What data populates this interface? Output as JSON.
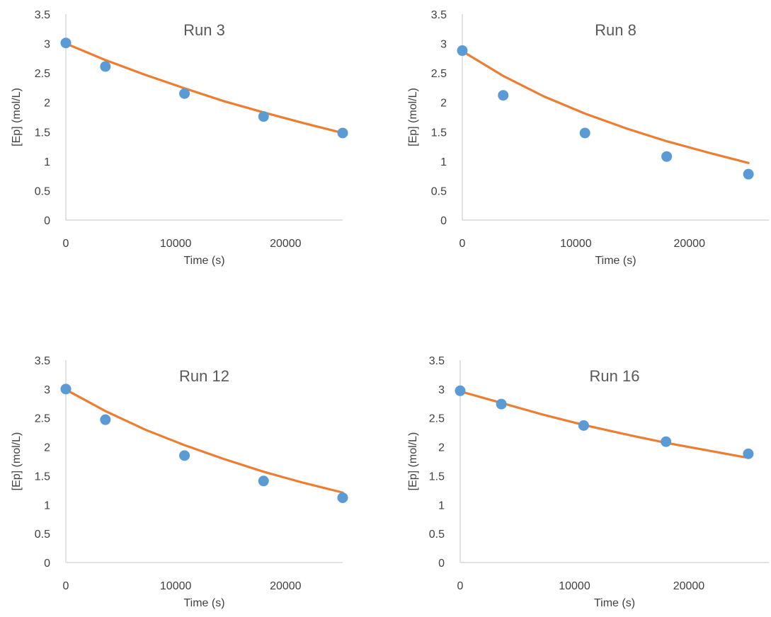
{
  "chart_data": [
    {
      "type": "scatter",
      "title": "Run 3",
      "xlabel": "Time (s)",
      "ylabel": "[Ep] (mol/L)",
      "xlim": [
        0,
        25200
      ],
      "ylim": [
        0,
        3.5
      ],
      "xticks": [
        "0",
        "10000",
        "20000"
      ],
      "yticks": [
        "0",
        "0.5",
        "1",
        "1.5",
        "2",
        "2.5",
        "3",
        "3.5"
      ],
      "grid": false,
      "series": [
        {
          "kind": "scatter",
          "color": "#5b9bd5",
          "x": [
            0,
            3600,
            10800,
            18000,
            25200
          ],
          "y": [
            3.01,
            2.61,
            2.15,
            1.76,
            1.48
          ]
        },
        {
          "kind": "line",
          "color": "#ed7d31",
          "x": [
            0,
            3600,
            7200,
            10800,
            14400,
            18000,
            21600,
            25200
          ],
          "y": [
            3.0,
            2.72,
            2.47,
            2.24,
            2.02,
            1.83,
            1.65,
            1.48
          ]
        }
      ]
    },
    {
      "type": "scatter",
      "title": "Run 8",
      "xlabel": "Time (s)",
      "ylabel": "[Ep] (mol/L)",
      "xlim": [
        0,
        27000
      ],
      "ylim": [
        0,
        3.5
      ],
      "xticks": [
        "0",
        "10000",
        "20000"
      ],
      "yticks": [
        "0",
        "0.5",
        "1",
        "1.5",
        "2",
        "2.5",
        "3",
        "3.5"
      ],
      "grid": false,
      "series": [
        {
          "kind": "scatter",
          "color": "#5b9bd5",
          "x": [
            0,
            3600,
            10800,
            18000,
            25200
          ],
          "y": [
            2.88,
            2.12,
            1.48,
            1.08,
            0.78
          ]
        },
        {
          "kind": "line",
          "color": "#ed7d31",
          "x": [
            0,
            3600,
            7200,
            10800,
            14400,
            18000,
            21600,
            25200
          ],
          "y": [
            2.87,
            2.45,
            2.1,
            1.81,
            1.56,
            1.34,
            1.15,
            0.97
          ]
        }
      ]
    },
    {
      "type": "scatter",
      "title": "Run 12",
      "xlabel": "Time (s)",
      "ylabel": "[Ep] (mol/L)",
      "xlim": [
        0,
        25200
      ],
      "ylim": [
        0,
        3.5
      ],
      "xticks": [
        "0",
        "10000",
        "20000"
      ],
      "yticks": [
        "0",
        "0.5",
        "1",
        "1.5",
        "2",
        "2.5",
        "3",
        "3.5"
      ],
      "grid": false,
      "series": [
        {
          "kind": "scatter",
          "color": "#5b9bd5",
          "x": [
            0,
            3600,
            10800,
            18000,
            25200
          ],
          "y": [
            3.0,
            2.47,
            1.85,
            1.41,
            1.12
          ]
        },
        {
          "kind": "line",
          "color": "#ed7d31",
          "x": [
            0,
            3600,
            7200,
            10800,
            14400,
            18000,
            21600,
            25200
          ],
          "y": [
            2.99,
            2.62,
            2.3,
            2.03,
            1.79,
            1.57,
            1.38,
            1.21
          ]
        }
      ]
    },
    {
      "type": "scatter",
      "title": "Run 16",
      "xlabel": "Time (s)",
      "ylabel": "[Ep] (mol/L)",
      "xlim": [
        0,
        27000
      ],
      "ylim": [
        0,
        3.5
      ],
      "xticks": [
        "0",
        "10000",
        "20000"
      ],
      "yticks": [
        "0",
        "0.5",
        "1",
        "1.5",
        "2",
        "2.5",
        "3",
        "3.5"
      ],
      "grid": false,
      "series": [
        {
          "kind": "scatter",
          "color": "#5b9bd5",
          "x": [
            0,
            3600,
            10800,
            18000,
            25200
          ],
          "y": [
            2.97,
            2.74,
            2.37,
            2.09,
            1.88
          ]
        },
        {
          "kind": "line",
          "color": "#ed7d31",
          "x": [
            0,
            3600,
            7200,
            10800,
            14400,
            18000,
            21600,
            25200
          ],
          "y": [
            2.96,
            2.76,
            2.56,
            2.38,
            2.22,
            2.07,
            1.94,
            1.81
          ]
        }
      ]
    }
  ]
}
